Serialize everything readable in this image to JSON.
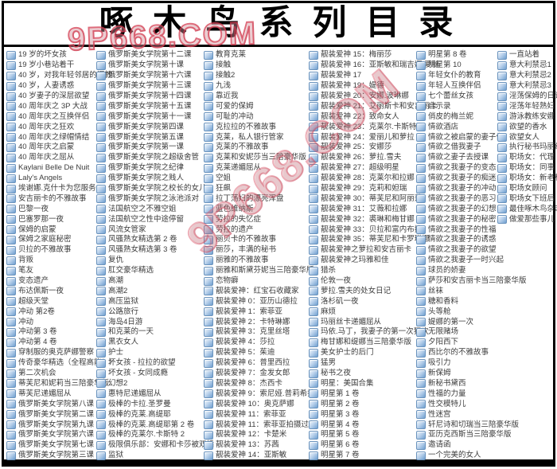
{
  "header": {
    "title": "啄 木 鸟 系 列 目 录"
  },
  "watermark": {
    "text": "9P668.COM",
    "color": "#d33c50"
  },
  "icon": {
    "name": "printer-icon"
  },
  "columns": [
    {
      "items": [
        "19 岁的坏女孩",
        "19 岁小巷站着干",
        "40 岁，对我年轻邻居的调教",
        "40 岁，人妻诱惑",
        "40 岁妻子的深层欲望",
        "40 周年庆之 3P 大战",
        "40 周年庆之互换伴侣",
        "40 周年庆之狂欢",
        "40 周年庆之绿帽情结",
        "40 周年庆之启蒙",
        "40 周年庆之屈从",
        "Kaylani Belle De Nuit",
        "Laly's Angels",
        "埃谢娜.克什卡为您服务",
        "安吉丽卡的不雅故事",
        "巴黎一夜",
        "巴塞罗那一夜",
        "保姆的启蒙",
        "保姆之家庭秘密",
        "贝拉的不雅故事",
        "背叛",
        "笔友",
        "变态遗产",
        "布达佩斯一夜",
        "超级天堂",
        "冲动 第2卷",
        "冲动",
        "冲动第 3 卷",
        "冲动第 4 卷",
        "穿制服的奥克萨娜警察",
        "传奇豪华精选（全程高能！）",
        "第二次机会",
        "蒂芙尼和妮莉当三陪豪华版",
        "蒂芙尼递媚屈从",
        "俄罗斯美女学院第八课",
        "俄罗斯美女学院第二课",
        "俄罗斯美女学院第九课",
        "俄罗斯美女学院第六课",
        "俄罗斯美女学院第七课",
        "俄罗斯美女学院第三课"
      ]
    },
    {
      "items": [
        "俄罗斯美女学院第十二课",
        "俄罗斯美女学院第十课",
        "俄罗斯美女学院第十六课",
        "俄罗斯美女学院第十三课",
        "俄罗斯美女学院第十四课",
        "俄罗斯美女学院第十五课",
        "俄罗斯美女学院第十一课",
        "俄罗斯美女学院第四课",
        "俄罗斯美女学院第五课",
        "俄罗斯美女学院第一课",
        "俄罗斯美女学院之超级舍管",
        "俄罗斯美女学院之纪律",
        "俄罗斯美女学院之贱人",
        "俄罗斯美女学院之校长的女儿",
        "俄罗斯美女学院之泳池派对",
        "法国航空之不雅空姐",
        "法国航空之性中途停留",
        "风流女管家",
        "风骚熟女精选第 2 卷",
        "风骚熟女精选第 3 卷",
        "复仇",
        "肛交豪华精选",
        "高潮",
        "高潮2",
        "高压监狱",
        "公路旅行",
        "海岛4日游",
        "和克莱的一天",
        "黑衣女人",
        "护士",
        "坏女孩 - 拉拉的欲望",
        "坏女孩 - 女同成瘾",
        "幻想2",
        "惠特尼递媚屈从",
        "极棒的卡拉.圣罗曼",
        "极棒的克莱.高缇耶",
        "极棒的克莱.高缇耶第 2 卷",
        "极棒的克莱尔.卡斯特 2",
        "极限俱乐部：安娜和卡莎被双插",
        "监狱"
      ]
    },
    {
      "items": [
        "教育克莱",
        "接触",
        "接触2",
        "九浅",
        "靠近我",
        "可爱的保姆",
        "可耻的冲动",
        "克拉拉的不雅故事",
        "克莱，私人银行管家",
        "克莱的不雅故事",
        "克莱和安妮莎当三陪豪华版",
        "克莱递媚屈从",
        "空姐",
        "狂飙",
        "拉丁荡妇的漂亮浑盘",
        "蓝色维纳斯",
        "劳拉的失忆症",
        "劳拉的遗产",
        "丽贝卡的不雅故事",
        "丽莎，丰满的秘书",
        "丽雅的不雅故事",
        "丽雅和斯黛芬妮当三陪豪华版",
        "恋物癖",
        "靓装爱神：红宝石收藏家",
        "靓装爱神 0：亚历山德拉",
        "靓装爱神 1：索菲亚",
        "靓装爱神 2：卡特琳娜",
        "靓装爱神 3：克里丝塔",
        "靓装爱神 4：莎拉",
        "靓装爱神 5：茱迪",
        "靓装爱神 6：普里西拉",
        "靓装爱神 7：金发女郎",
        "靓装爱神 8：杰西卡",
        "靓装爱神 9：索尼娅.普莉希拉",
        "靓装爱神 10：奥克萨娜",
        "靓装爱神 11：索菲亚",
        "靓装爱神 11：索菲亚拍摄过程",
        "靓装爱神 12：卡楚米",
        "靓装爱神 13：苏茜",
        "靓装爱神 14：亚斯敏"
      ]
    },
    {
      "items": [
        "靓装爱神 15：梅丽莎",
        "靓装爱神 16：亚斯敏和瑞吉娜.爱丝",
        "靓装爱神 17",
        "靓装爱神 19：媞德",
        "靓装爱神 20：安娜.波琳娜",
        "靓装爱神 21：艾丽斯卡和安吉丽卡",
        "靓装爱神 22：致命女人",
        "靓装爱神 23：克莱尔.卡斯特",
        "靓装爱神 24：爱丽儿和萝拉",
        "靓装爱神 25：安娜莎",
        "靓装爱神 26：萝拉.雪夫",
        "靓装爱神 27：超级明星",
        "靓装爱神 28：克莱尔和拉娜",
        "靓装爱神 29：克莉和妲瑞",
        "靓装爱神 30：蒂芙尼和阿丽莎",
        "靓装爱神 31：艾薇和拉娜",
        "靓装爱神 32：裘琳和梅甘娜",
        "靓装爱神 33：贝拉和富内布拉",
        "靓装爱神 35：蒂芙尼和卡罗琳娜",
        "靓装爱神之萝拉和安吉丽卡",
        "靓装爱神之玛雅和佳",
        "猎杀",
        "伦敦一夜",
        "萝拉.雪夫的处女日记",
        "洛杉矶一夜",
        "麻烦",
        "玛丽丝卡递媚屈从",
        "玛依.马丁，我妻子的第一次狂欢",
        "梅甘娜和缇娜当三陪豪华版",
        "美女护士的后门",
        "猛男",
        "秘书之夜",
        "明星：美国合集",
        "明星第 1 卷",
        "明星第 2 卷",
        "明星第 3 卷",
        "明星第 4 卷",
        "明星第 5 卷",
        "明星第 6 卷",
        "明星第 7 卷"
      ]
    },
    {
      "items": [
        "明星第 8 卷",
        "明星第 10",
        "年轻女仆的教育",
        "年轻人互换伴侣",
        "七个蕾丝女孩",
        "启示录",
        "俏皮的梅兰妮",
        "情欲酒店",
        "情欲之被启蒙的妻子们",
        "情欲之借我妻子",
        "情欲之妻子去授课",
        "情欲之我妻子的变态",
        "情欲之我妻子的痴迷",
        "情欲之我妻子的冲动",
        "情欲之我妻子的恶习",
        "情欲之我妻子的幻想",
        "情欲之我妻子的秘密",
        "情欲之我妻子的性福",
        "情欲之我妻子的诱惑",
        "情欲之我妻子的欲望",
        "情欲之我妻子一时兴起",
        "球员的娇妻",
        "萨莎和安吉丽卡当三陪豪华版",
        "丝袜",
        "糖和香料",
        "头等舱",
        "媞娜的第一次",
        "无限赌场",
        "夕阳西下",
        "西比尔的不雅故事",
        "吸引力",
        "新保姆",
        "新秘书黛西",
        "性福的力量",
        "性交模特儿",
        "性迷宫",
        "轩尼诗和切瑞当三陪豪华版",
        "亚历克西斯当三陪豪华版",
        "邀请函",
        "一个完美的女人"
      ]
    },
    {
      "items": [
        "一直站着",
        "意大利禁忌1",
        "意大利禁忌2",
        "意大利禁忌3",
        "淫荡保姆的日记",
        "淫荡年轻熟妇",
        "游泳教练安娜",
        "欲望的香水",
        "欲望女人",
        "执行秘书玛丽丝卡",
        "职场女：代理",
        "职场女：同事",
        "职场女：新老板克莱",
        "职场女顾问",
        "职场女下班后",
        "最佳啄木鸟杂志",
        "做爱那些事儿"
      ]
    }
  ]
}
